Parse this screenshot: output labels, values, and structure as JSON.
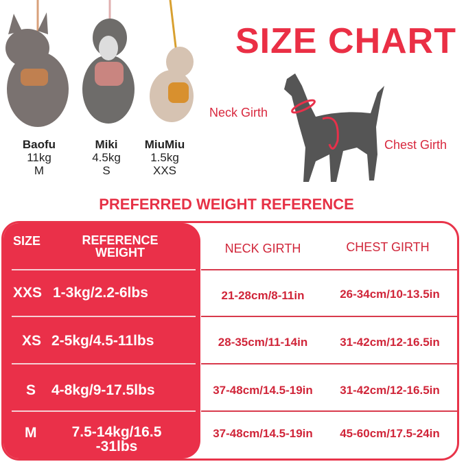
{
  "title": "SIZE CHART",
  "dogs": [
    {
      "name": "Baofu",
      "weight": "11kg",
      "size": "M"
    },
    {
      "name": "Miki",
      "weight": "4.5kg",
      "size": "S"
    },
    {
      "name": "MiuMiu",
      "weight": "1.5kg",
      "size": "XXS"
    }
  ],
  "diagram": {
    "neck_label": "Neck Girth",
    "chest_label": "Chest Girth"
  },
  "subtitle": "PREFERRED WEIGHT REFERENCE",
  "table": {
    "headers": {
      "size": "SIZE",
      "weight_line1": "REFERENCE",
      "weight_line2": "WEIGHT",
      "neck": "NECK GIRTH",
      "chest": "CHEST GIRTH"
    },
    "rows": [
      {
        "size": "XXS",
        "weight": "1-3kg/2.2-6lbs",
        "neck": "21-28cm/8-11in",
        "chest": "26-34cm/10-13.5in"
      },
      {
        "size": "XS",
        "weight": "2-5kg/4.5-11lbs",
        "neck": "28-35cm/11-14in",
        "chest": "31-42cm/12-16.5in"
      },
      {
        "size": "S",
        "weight": "4-8kg/9-17.5lbs",
        "neck": "37-48cm/14.5-19in",
        "chest": "31-42cm/12-16.5in"
      },
      {
        "size": "M",
        "weight": "7.5-14kg/16.5\n-31lbs",
        "neck": "37-48cm/14.5-19in",
        "chest": "45-60cm/17.5-24in"
      }
    ]
  },
  "colors": {
    "accent": "#ea3049",
    "text_red": "#d02539"
  }
}
